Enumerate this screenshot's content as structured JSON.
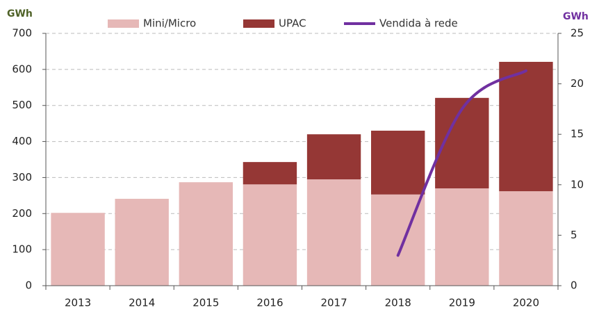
{
  "chart_data": {
    "type": "bar",
    "stacked": true,
    "y_label": "GWh",
    "y2_label": "GWh",
    "categories": [
      "2013",
      "2014",
      "2015",
      "2016",
      "2017",
      "2018",
      "2019",
      "2020"
    ],
    "series": [
      {
        "name": "Mini/Micro",
        "color": "#e6b8b7",
        "type": "bar",
        "values": [
          202,
          241,
          287,
          281,
          295,
          253,
          270,
          262
        ]
      },
      {
        "name": "UPAC",
        "color": "#953735",
        "type": "bar",
        "values": [
          0,
          0,
          0,
          62,
          125,
          177,
          251,
          359
        ]
      },
      {
        "name": "Vendida à rede",
        "color": "#7030a0",
        "type": "line",
        "axis": "y2",
        "values": [
          null,
          null,
          null,
          null,
          null,
          3.0,
          17.5,
          21.3
        ]
      }
    ],
    "ylim": [
      0,
      700
    ],
    "yticks": [
      0,
      100,
      200,
      300,
      400,
      500,
      600,
      700
    ],
    "y2lim": [
      0,
      25
    ],
    "y2ticks": [
      0,
      5,
      10,
      15,
      20,
      25
    ],
    "grid": true,
    "legend": "top"
  }
}
